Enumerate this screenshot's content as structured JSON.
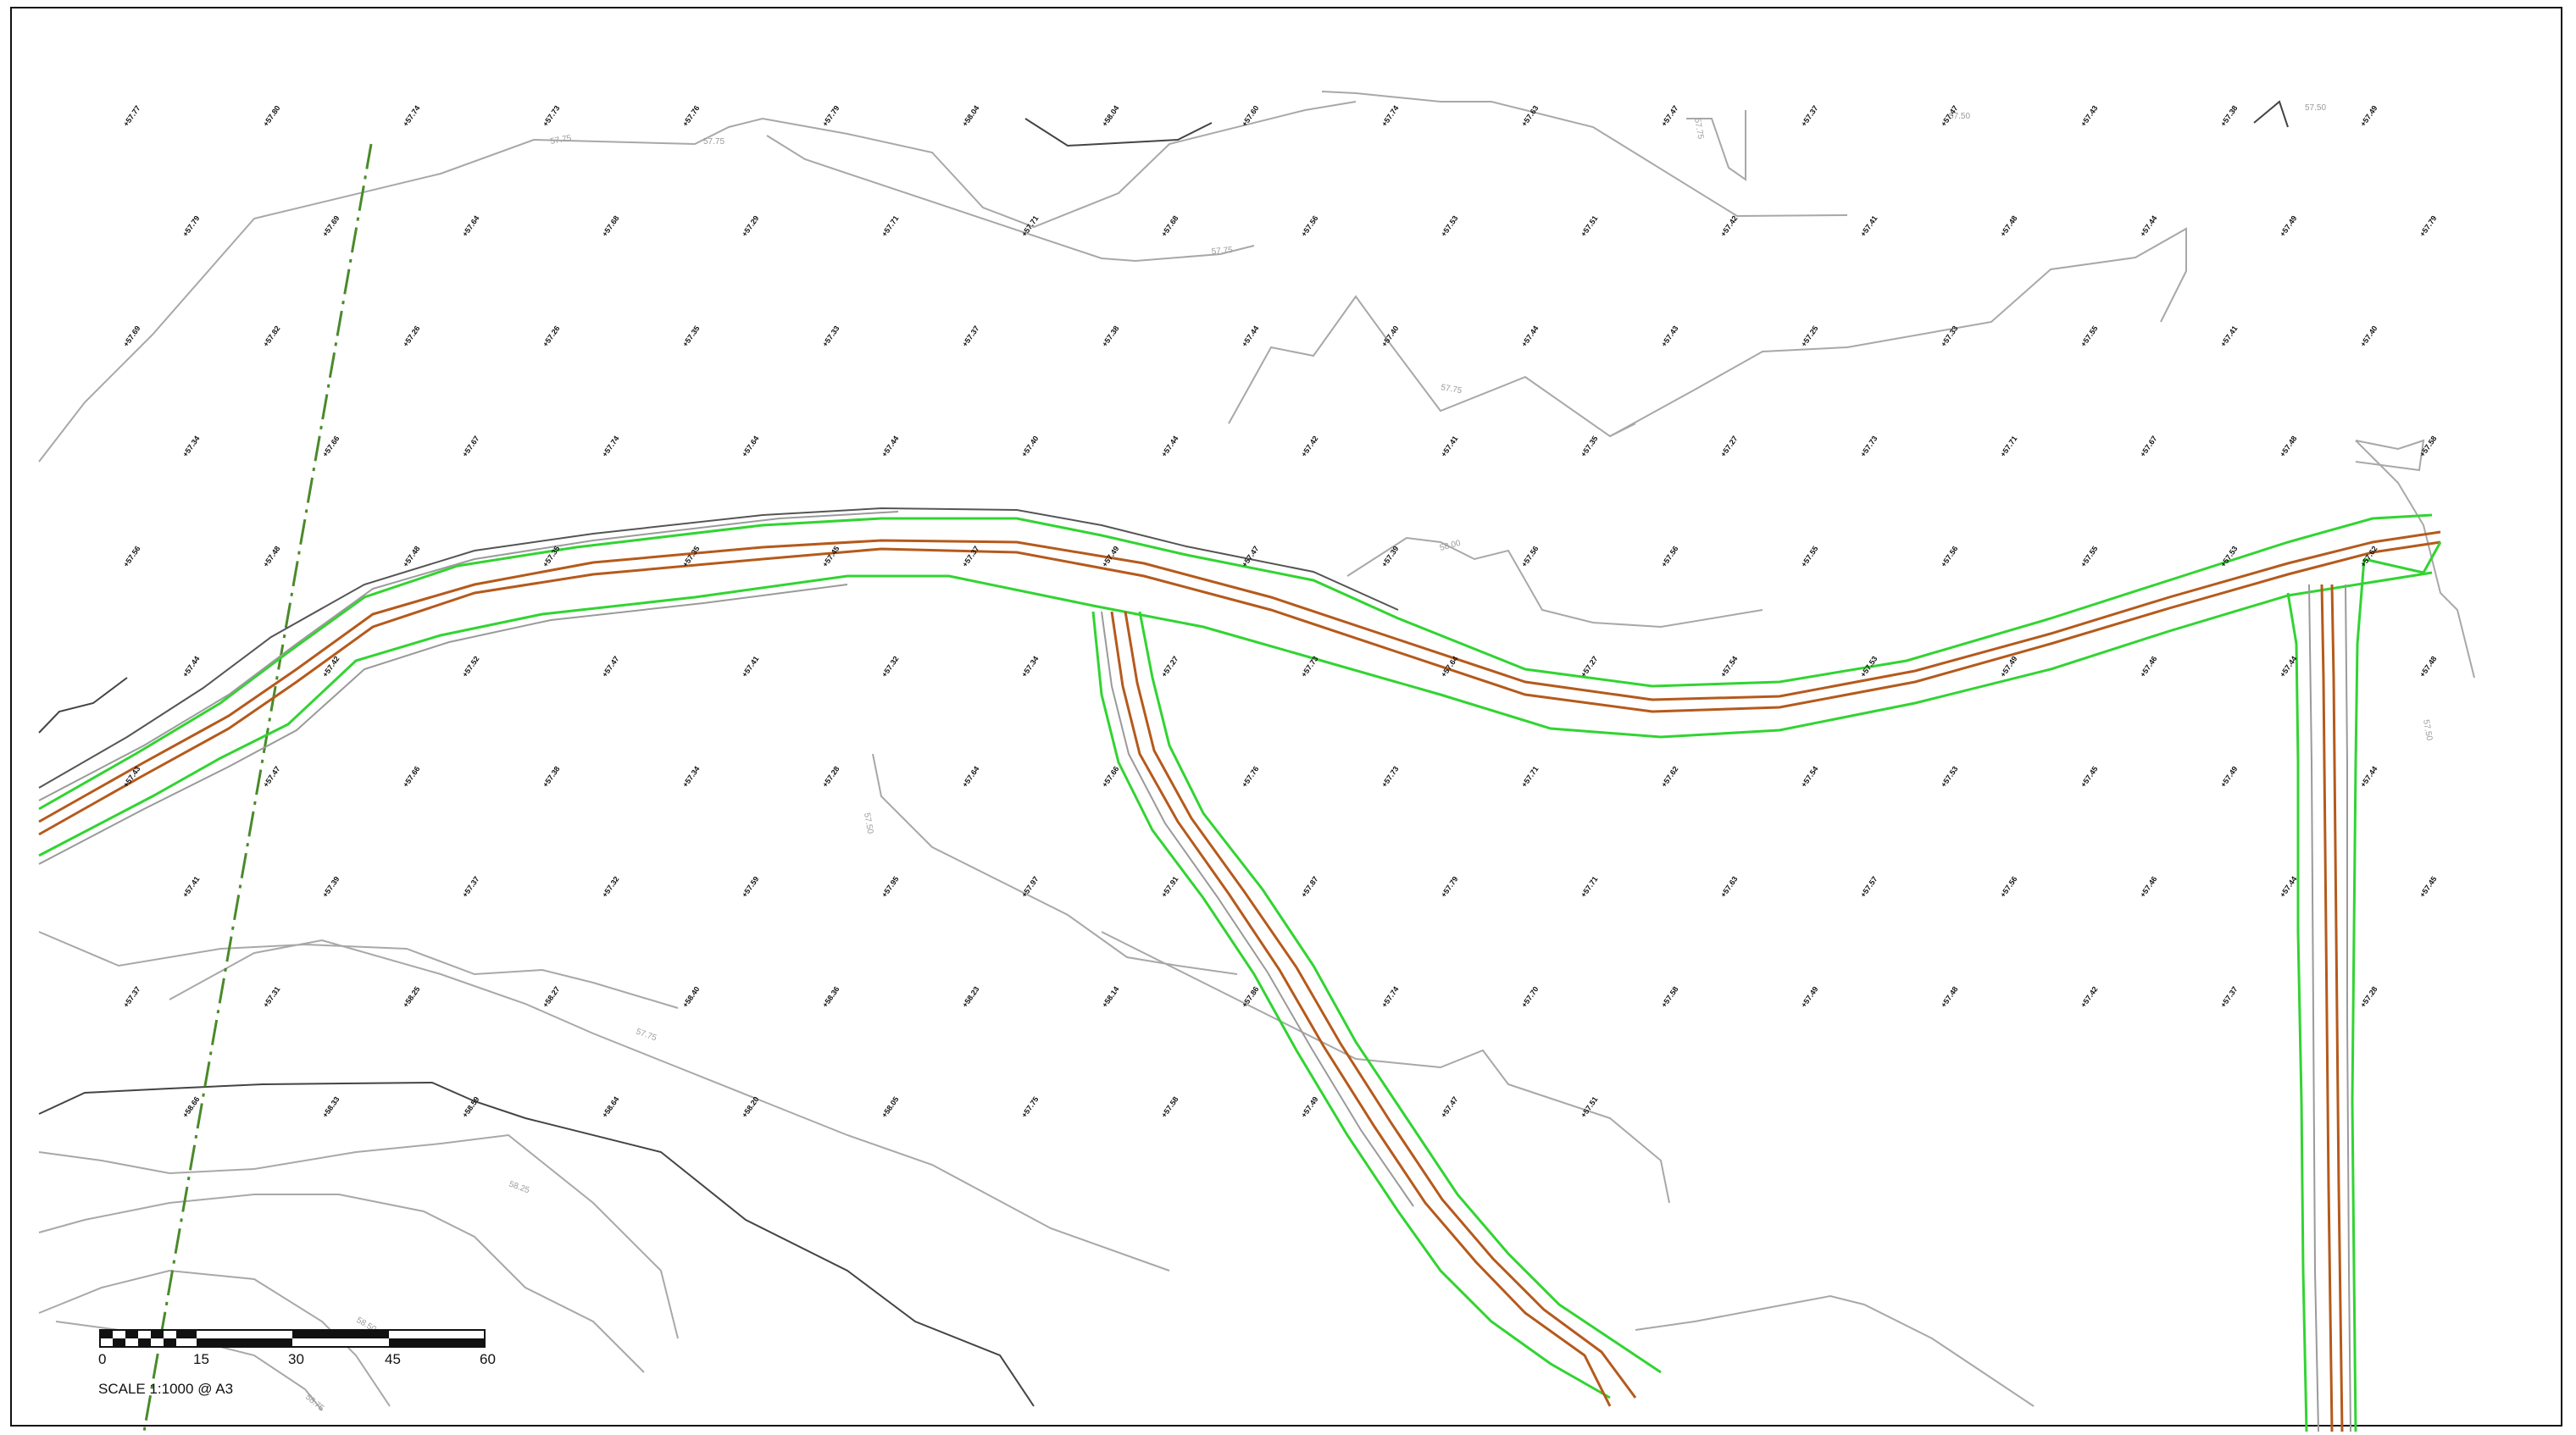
{
  "scale_bar": {
    "ticks": [
      "0",
      "15",
      "30",
      "45",
      "60"
    ],
    "note": "SCALE  1:1000 @ A3"
  },
  "colors": {
    "road_edge": "#31d431",
    "road_centre": "#b55a1c",
    "boundary": "#4a8a2a",
    "contour": "#a8a8a8",
    "frame": "#111111"
  },
  "contour_labels": [
    "57.75",
    "57.75",
    "57.75",
    "57.75",
    "57.75",
    "57.50",
    "57.50",
    "57.50",
    "57.75",
    "58.00",
    "58.25",
    "58.50",
    "58.75",
    "57.50"
  ],
  "spot_heights": [
    "57.77",
    "57.80",
    "57.74",
    "57.73",
    "57.76",
    "57.79",
    "58.04",
    "58.04",
    "57.60",
    "57.74",
    "57.63",
    "57.47",
    "57.37",
    "57.47",
    "57.43",
    "57.38",
    "57.49",
    "57.79",
    "57.69",
    "57.64",
    "57.68",
    "57.29",
    "57.71",
    "57.71",
    "57.68",
    "57.56",
    "57.53",
    "57.51",
    "57.42",
    "57.41",
    "57.48",
    "57.44",
    "57.49",
    "57.79",
    "57.69",
    "57.82",
    "57.26",
    "57.26",
    "57.35",
    "57.33",
    "57.37",
    "57.38",
    "57.44",
    "57.40",
    "57.44",
    "57.43",
    "57.25",
    "57.33",
    "57.55",
    "57.41",
    "57.40",
    "57.34",
    "57.66",
    "57.67",
    "57.74",
    "57.64",
    "57.44",
    "57.40",
    "57.44",
    "57.42",
    "57.41",
    "57.35",
    "57.27",
    "57.73",
    "57.71",
    "57.67",
    "57.48",
    "57.58",
    "57.56",
    "57.48",
    "57.48",
    "57.35",
    "57.35",
    "57.45",
    "57.37",
    "57.49",
    "57.47",
    "57.39",
    "57.56",
    "57.56",
    "57.55",
    "57.56",
    "57.55",
    "57.53",
    "57.62",
    "57.44",
    "57.42",
    "57.52",
    "57.47",
    "57.41",
    "57.32",
    "57.34",
    "57.27",
    "57.73",
    "57.64",
    "57.27",
    "57.54",
    "57.53",
    "57.49",
    "57.46",
    "57.44",
    "57.48",
    "57.43",
    "57.47",
    "57.66",
    "57.38",
    "57.34",
    "57.28",
    "57.64",
    "57.66",
    "57.76",
    "57.73",
    "57.71",
    "57.62",
    "57.54",
    "57.53",
    "57.45",
    "57.49",
    "57.44",
    "57.41",
    "57.39",
    "57.37",
    "57.32",
    "57.59",
    "57.95",
    "57.97",
    "57.91",
    "57.87",
    "57.79",
    "57.71",
    "57.63",
    "57.57",
    "57.56",
    "57.46",
    "57.44",
    "57.45",
    "57.37",
    "57.31",
    "58.25",
    "58.27",
    "58.40",
    "58.36",
    "58.23",
    "58.14",
    "57.86",
    "57.74",
    "57.70",
    "57.58",
    "57.49",
    "57.48",
    "57.42",
    "57.37",
    "57.28",
    "58.66",
    "58.33",
    "58.59",
    "58.64",
    "58.20",
    "58.05",
    "57.75",
    "57.58",
    "57.49",
    "57.47",
    "57.51"
  ]
}
